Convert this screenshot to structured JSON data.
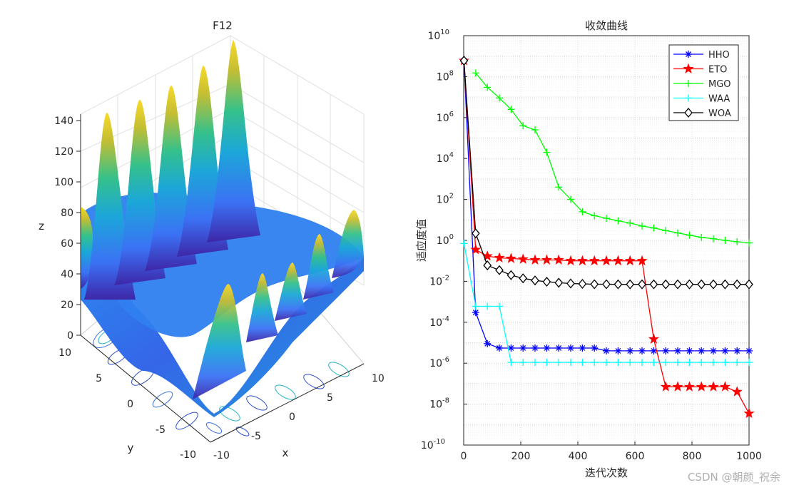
{
  "watermark": "CSDN @朝颜_祝余",
  "colors": {
    "axis": "#262626",
    "grid": "#d9d9d9",
    "background": "#ffffff"
  },
  "chart_data": [
    {
      "type": "surface",
      "title": "F12",
      "xlabel": "x",
      "ylabel": "y",
      "zlabel": "z",
      "xlim": [
        -10,
        10
      ],
      "ylim": [
        -10,
        10
      ],
      "zlim": [
        0,
        140
      ],
      "x_ticks": [
        "-10",
        "-5",
        "0",
        "5",
        "10"
      ],
      "y_ticks": [
        "-10",
        "-5",
        "0",
        "5",
        "10"
      ],
      "z_ticks": [
        "0",
        "20",
        "40",
        "60",
        "80",
        "100",
        "120",
        "140"
      ],
      "colormap": "parula",
      "contour_projection": true,
      "grid": true
    },
    {
      "type": "line",
      "title": "收敛曲线",
      "xlabel": "迭代次数",
      "ylabel": "适应度值",
      "xlim": [
        0,
        1000
      ],
      "ylog_range": [
        -10,
        10
      ],
      "yscale": "log",
      "x_ticks": [
        "0",
        "200",
        "400",
        "600",
        "800",
        "1000"
      ],
      "y_tick_exponents": [
        "-10",
        "-8",
        "-6",
        "-4",
        "-2",
        "0",
        "2",
        "4",
        "6",
        "8",
        "10"
      ],
      "grid": true,
      "legend": "top-right",
      "series": [
        {
          "name": "HHO",
          "color": "#0000ff",
          "marker": "asterisk",
          "points": [
            [
              1,
              600000000.0
            ],
            [
              42,
              0.0003
            ],
            [
              83,
              9e-06
            ],
            [
              125,
              5.5e-06
            ],
            [
              166,
              5.5e-06
            ],
            [
              208,
              5.5e-06
            ],
            [
              250,
              5.5e-06
            ],
            [
              291,
              5.5e-06
            ],
            [
              333,
              5.5e-06
            ],
            [
              375,
              5.5e-06
            ],
            [
              416,
              5.5e-06
            ],
            [
              458,
              5.5e-06
            ],
            [
              500,
              4e-06
            ],
            [
              541,
              4e-06
            ],
            [
              583,
              4e-06
            ],
            [
              625,
              4e-06
            ],
            [
              666,
              4e-06
            ],
            [
              708,
              4e-06
            ],
            [
              750,
              4e-06
            ],
            [
              791,
              4e-06
            ],
            [
              833,
              4e-06
            ],
            [
              875,
              4e-06
            ],
            [
              916,
              4e-06
            ],
            [
              958,
              4e-06
            ],
            [
              1000,
              4e-06
            ]
          ]
        },
        {
          "name": "ETO",
          "color": "#ff0000",
          "marker": "pentagram",
          "points": [
            [
              1,
              600000000.0
            ],
            [
              42,
              0.35
            ],
            [
              83,
              0.17
            ],
            [
              125,
              0.14
            ],
            [
              166,
              0.13
            ],
            [
              208,
              0.12
            ],
            [
              250,
              0.11
            ],
            [
              291,
              0.11
            ],
            [
              333,
              0.11
            ],
            [
              375,
              0.1
            ],
            [
              416,
              0.1
            ],
            [
              458,
              0.1
            ],
            [
              500,
              0.1
            ],
            [
              541,
              0.1
            ],
            [
              583,
              0.1
            ],
            [
              625,
              0.1
            ],
            [
              666,
              1.5e-05
            ],
            [
              708,
              7e-08
            ],
            [
              750,
              7e-08
            ],
            [
              791,
              7e-08
            ],
            [
              833,
              7e-08
            ],
            [
              875,
              7e-08
            ],
            [
              916,
              7e-08
            ],
            [
              958,
              4e-08
            ],
            [
              1000,
              3.5e-09
            ]
          ]
        },
        {
          "name": "MGO",
          "color": "#00ff00",
          "marker": "plus",
          "points": [
            [
              42,
              150000000.0
            ],
            [
              83,
              30000000.0
            ],
            [
              125,
              9000000.0
            ],
            [
              166,
              2500000.0
            ],
            [
              208,
              400000.0
            ],
            [
              250,
              250000.0
            ],
            [
              291,
              20000.0
            ],
            [
              333,
              400
            ],
            [
              375,
              100
            ],
            [
              416,
              25
            ],
            [
              458,
              16
            ],
            [
              500,
              12
            ],
            [
              541,
              9
            ],
            [
              583,
              7
            ],
            [
              625,
              5
            ],
            [
              666,
              4
            ],
            [
              708,
              3
            ],
            [
              750,
              2.3
            ],
            [
              791,
              1.8
            ],
            [
              833,
              1.4
            ],
            [
              875,
              1.2
            ],
            [
              916,
              1.0
            ],
            [
              958,
              0.85
            ],
            [
              1000,
              0.75
            ]
          ]
        },
        {
          "name": "WAA",
          "color": "#00ffff",
          "marker": "plus",
          "points": [
            [
              1,
              0.7
            ],
            [
              42,
              0.0006
            ],
            [
              83,
              0.0006
            ],
            [
              125,
              0.0006
            ],
            [
              166,
              1.1e-06
            ],
            [
              208,
              1.1e-06
            ],
            [
              250,
              1.1e-06
            ],
            [
              291,
              1.1e-06
            ],
            [
              333,
              1.1e-06
            ],
            [
              375,
              1.1e-06
            ],
            [
              416,
              1.1e-06
            ],
            [
              458,
              1.1e-06
            ],
            [
              500,
              1.1e-06
            ],
            [
              541,
              1.1e-06
            ],
            [
              583,
              1.1e-06
            ],
            [
              625,
              1.1e-06
            ],
            [
              666,
              1.1e-06
            ],
            [
              708,
              1.1e-06
            ],
            [
              750,
              1.1e-06
            ],
            [
              791,
              1.1e-06
            ],
            [
              833,
              1.1e-06
            ],
            [
              875,
              1.1e-06
            ],
            [
              916,
              1.1e-06
            ],
            [
              958,
              1.1e-06
            ],
            [
              1000,
              1.1e-06
            ]
          ]
        },
        {
          "name": "WOA",
          "color": "#000000",
          "marker": "diamond",
          "points": [
            [
              1,
              600000000.0
            ],
            [
              42,
              2.2
            ],
            [
              83,
              0.06
            ],
            [
              125,
              0.035
            ],
            [
              166,
              0.02
            ],
            [
              208,
              0.014
            ],
            [
              250,
              0.011
            ],
            [
              291,
              0.0095
            ],
            [
              333,
              0.0085
            ],
            [
              375,
              0.0078
            ],
            [
              416,
              0.0075
            ],
            [
              458,
              0.0072
            ],
            [
              500,
              0.0072
            ],
            [
              541,
              0.0071
            ],
            [
              583,
              0.0071
            ],
            [
              625,
              0.0071
            ],
            [
              666,
              0.0071
            ],
            [
              708,
              0.0071
            ],
            [
              750,
              0.0071
            ],
            [
              791,
              0.0071
            ],
            [
              833,
              0.0071
            ],
            [
              875,
              0.0071
            ],
            [
              916,
              0.0071
            ],
            [
              958,
              0.0071
            ],
            [
              1000,
              0.0071
            ]
          ]
        }
      ]
    }
  ]
}
